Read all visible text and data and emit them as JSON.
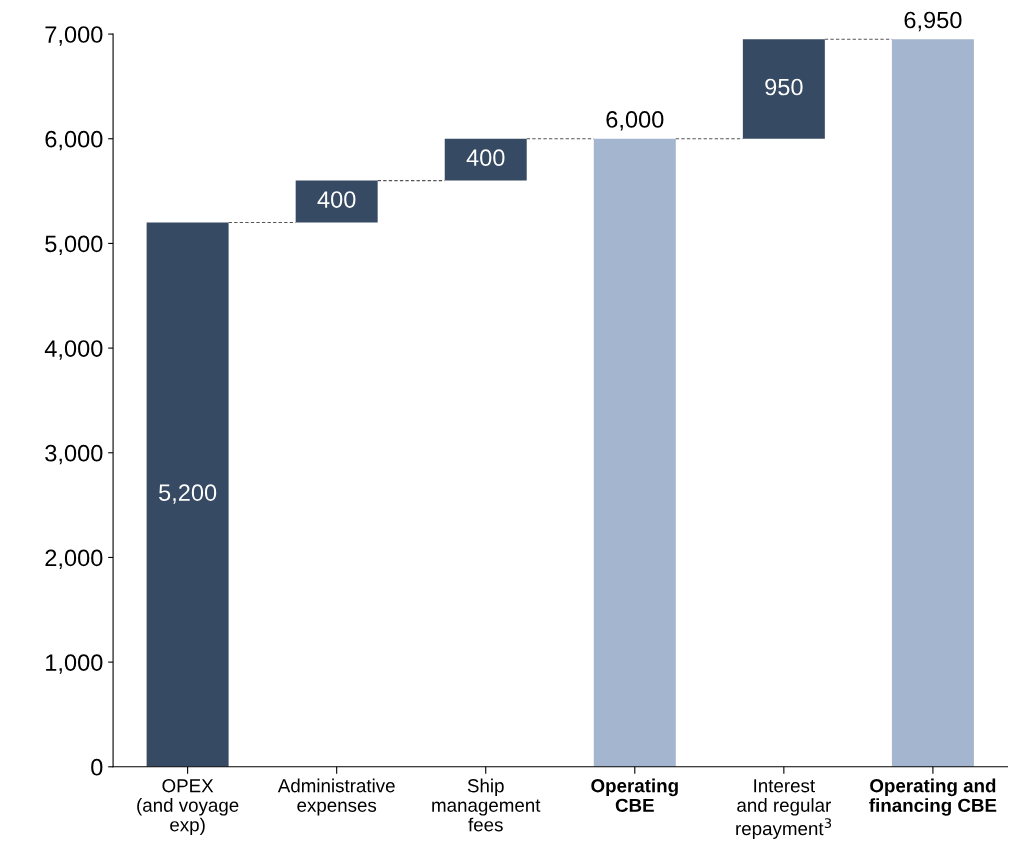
{
  "chart_data": {
    "type": "bar",
    "categories": [
      "OPEX\n(and voyage\nexp)",
      "Administrative\nexpenses",
      "Ship\nmanagement\nfees",
      "Operating\nCBE",
      "Interest\nand regular\nrepayment$^{3}$",
      "Operating and\nfinancing CBE"
    ],
    "values": [
      5200,
      400,
      400,
      6000,
      950,
      6950
    ],
    "base": [
      0,
      5200,
      5600,
      0,
      6000,
      0
    ],
    "colors": [
      "#364a63",
      "#364a63",
      "#364a63",
      "#a3b5cf",
      "#364a63",
      "#a3b5cf"
    ],
    "value_labels": [
      "5,200",
      "400",
      "400",
      "6,000",
      "950",
      "6,950"
    ],
    "ylim": [
      0,
      7000
    ],
    "yticks": [
      {
        "value": 0,
        "label": "0"
      },
      {
        "value": 1000,
        "label": "1,000"
      },
      {
        "value": 2000,
        "label": "2,000"
      },
      {
        "value": 3000,
        "label": "3,000"
      },
      {
        "value": 4000,
        "label": "4,000"
      },
      {
        "value": 5000,
        "label": "5,000"
      },
      {
        "value": 6000,
        "label": "6,000"
      },
      {
        "value": 7000,
        "label": "7,000"
      }
    ],
    "grid": false,
    "legend": false
  }
}
